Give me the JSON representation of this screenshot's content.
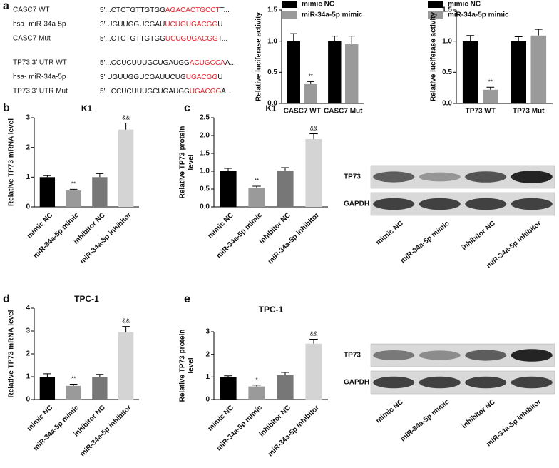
{
  "panels": [
    "a",
    "b",
    "c",
    "d",
    "e"
  ],
  "highlight_color": "#e8202a",
  "sequences": [
    {
      "name": "CASC7 WT",
      "before": "5′...CTCTGTTGTGG",
      "match": "AGACACTGCCT",
      "after": "T..."
    },
    {
      "name": "hsa- miR-34a-5p",
      "before": "3′  UGUUGGUCGAU",
      "match": "UCUGUGACGG",
      "after": "U"
    },
    {
      "name": "CASC7 Mut",
      "before": "5′...CTCTGTTGTGG",
      "match": "UCUGUGACGG",
      "after": "T..."
    },
    {
      "name": "TP73 3′ UTR WT",
      "before": "5′...CCUCUUUGCUGAUGG",
      "match": "ACUGCCA",
      "after": "A..."
    },
    {
      "name": "hsa- miR-34a-5p",
      "before": "3′  UGUUGGUCGAUUCUG",
      "match": "UGACGG",
      "after": "U"
    },
    {
      "name": "TP73 3′ UTR Mut",
      "before": "5′...CCUCUUUGCUGAUGG",
      "match": "UGACGG",
      "after": "A..."
    }
  ],
  "blots": [
    {
      "rows": [
        "TP73",
        "GAPDH"
      ],
      "lanes": [
        "mimic NC",
        "miR-34a-5p mimic",
        "inhibitor NC",
        "miR-34a-5p inhibitor"
      ]
    },
    {
      "rows": [
        "TP73",
        "GAPDH"
      ],
      "lanes": [
        "mimic NC",
        "miR-34a-5p mimic",
        "inhibitor NC",
        "miR-34a-5p inhibitor"
      ]
    }
  ],
  "chart_data": [
    {
      "type": "bar",
      "ylabel": "Relative luciferase activity",
      "categories": [
        "CASC7 WT",
        "CASC7 Mut"
      ],
      "series": [
        {
          "name": "mimic NC",
          "color": "#000000",
          "values": [
            1.0,
            1.0
          ],
          "errors": [
            0.12,
            0.08
          ],
          "significance": [
            null,
            null
          ]
        },
        {
          "name": "miR-34a-5p mimic",
          "color": "#9a9a9a",
          "values": [
            0.31,
            0.95
          ],
          "errors": [
            0.04,
            0.13
          ],
          "significance": [
            "**",
            null
          ]
        }
      ],
      "ylim": [
        0,
        1.5
      ],
      "yticks": [
        {
          "value": 0,
          "label": "0.0"
        },
        {
          "value": 0.5,
          "label": "0.5"
        },
        {
          "value": 1,
          "label": "1.0"
        },
        {
          "value": 1.5,
          "label": "1.5"
        }
      ]
    },
    {
      "type": "bar",
      "ylabel": "Relative luciferase activity",
      "categories": [
        "TP73 WT",
        "TP73 Mut"
      ],
      "series": [
        {
          "name": "mimic NC",
          "color": "#000000",
          "values": [
            1.0,
            1.0
          ],
          "errors": [
            0.09,
            0.07
          ],
          "significance": [
            null,
            null
          ]
        },
        {
          "name": "miR-34a-5p mimic",
          "color": "#9a9a9a",
          "values": [
            0.22,
            1.09
          ],
          "errors": [
            0.04,
            0.1
          ],
          "significance": [
            "**",
            null
          ]
        }
      ],
      "ylim": [
        0,
        1.5
      ],
      "yticks": [
        {
          "value": 0,
          "label": "0.0"
        },
        {
          "value": 0.5,
          "label": "0.5"
        },
        {
          "value": 1,
          "label": "1.0"
        },
        {
          "value": 1.5,
          "label": "1.5"
        }
      ]
    },
    {
      "type": "bar",
      "title": "K1",
      "ylabel": "Relative TP73 mRNA level",
      "categories": [
        "mimic NC",
        "miR-34a-5p mimic",
        "inhibitor NC",
        "miR-34a-5p inhibitor"
      ],
      "values": [
        1.0,
        0.55,
        1.0,
        2.6
      ],
      "errors": [
        0.05,
        0.04,
        0.12,
        0.22
      ],
      "significance": [
        null,
        "**",
        null,
        "&&"
      ],
      "colors": [
        "#000000",
        "#9a9a9a",
        "#777777",
        "#d4d4d4"
      ],
      "ylim": [
        0,
        3
      ],
      "yticks": [
        0,
        1,
        2,
        3
      ]
    },
    {
      "type": "bar",
      "title": "K1",
      "ylabel": [
        "Relative TP73 protein",
        "level"
      ],
      "categories": [
        "mimic NC",
        "miR-34a-5p mimic",
        "inhibitor NC",
        "miR-34a-5p inhibitor"
      ],
      "values": [
        1.0,
        0.53,
        1.02,
        1.9
      ],
      "errors": [
        0.08,
        0.05,
        0.08,
        0.15
      ],
      "significance": [
        null,
        "**",
        null,
        "&&"
      ],
      "colors": [
        "#000000",
        "#9a9a9a",
        "#777777",
        "#d4d4d4"
      ],
      "ylim": [
        0,
        2.5
      ],
      "yticks": [
        {
          "value": 0,
          "label": "0.0"
        },
        {
          "value": 0.5,
          "label": "0.5"
        },
        {
          "value": 1,
          "label": "1.0"
        },
        {
          "value": 1.5,
          "label": "1.5"
        },
        {
          "value": 2,
          "label": "2.0"
        },
        {
          "value": 2.5,
          "label": "2.5"
        }
      ]
    },
    {
      "type": "bar",
      "title": "TPC-1",
      "ylabel": "Relative TP73 mRNA level",
      "categories": [
        "mimic NC",
        "miR-34a-5p mimic",
        "inhibitor NC",
        "miR-34a-5p inhibitor"
      ],
      "values": [
        1.0,
        0.6,
        1.0,
        2.95
      ],
      "errors": [
        0.13,
        0.07,
        0.1,
        0.25
      ],
      "significance": [
        null,
        "**",
        null,
        "&&"
      ],
      "colors": [
        "#000000",
        "#9a9a9a",
        "#777777",
        "#d4d4d4"
      ],
      "ylim": [
        0,
        4
      ],
      "yticks": [
        0,
        1,
        2,
        3,
        4
      ]
    },
    {
      "type": "bar",
      "title": "TPC-1",
      "ylabel": [
        "Relative TP73 protein",
        "level"
      ],
      "categories": [
        "mimic NC",
        "miR-34a-5p mimic",
        "inhibitor NC",
        "miR-34a-5p inhibitor"
      ],
      "values": [
        1.0,
        0.58,
        1.08,
        2.47
      ],
      "errors": [
        0.05,
        0.06,
        0.12,
        0.2
      ],
      "significance": [
        null,
        "*",
        null,
        "&&"
      ],
      "colors": [
        "#000000",
        "#9a9a9a",
        "#777777",
        "#d4d4d4"
      ],
      "ylim": [
        0,
        3
      ],
      "yticks": [
        0,
        1,
        2,
        3
      ]
    }
  ]
}
